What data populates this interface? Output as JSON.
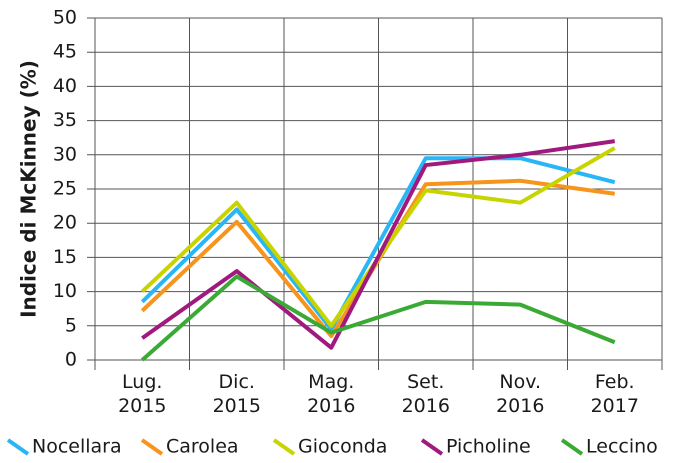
{
  "chart_data": {
    "type": "line",
    "y_label": "Indice di McKinney (%)",
    "categories": [
      "Lug. 2015",
      "Dic. 2015",
      "Mag. 2016",
      "Set. 2016",
      "Nov. 2016",
      "Feb. 2017"
    ],
    "series": [
      {
        "name": "Nocellara",
        "color": "#29b6f6",
        "values": [
          8.5,
          22,
          4.5,
          29.5,
          29.5,
          26
        ]
      },
      {
        "name": "Carolea",
        "color": "#f7941d",
        "values": [
          7.2,
          20.2,
          3.5,
          25.7,
          26.2,
          24.3
        ]
      },
      {
        "name": "Gioconda",
        "color": "#c8d400",
        "values": [
          10,
          23,
          5,
          24.8,
          23,
          31
        ]
      },
      {
        "name": "Picholine",
        "color": "#a0197e",
        "values": [
          3.2,
          13,
          1.8,
          28.5,
          30,
          32
        ]
      },
      {
        "name": "Leccino",
        "color": "#3aaa35",
        "values": [
          0,
          12.2,
          4,
          8.5,
          8.1,
          2.6
        ]
      }
    ],
    "ylim": [
      0,
      50
    ],
    "yticks": [
      0,
      5,
      10,
      15,
      20,
      25,
      30,
      35,
      40,
      45,
      50
    ],
    "grid": true
  }
}
